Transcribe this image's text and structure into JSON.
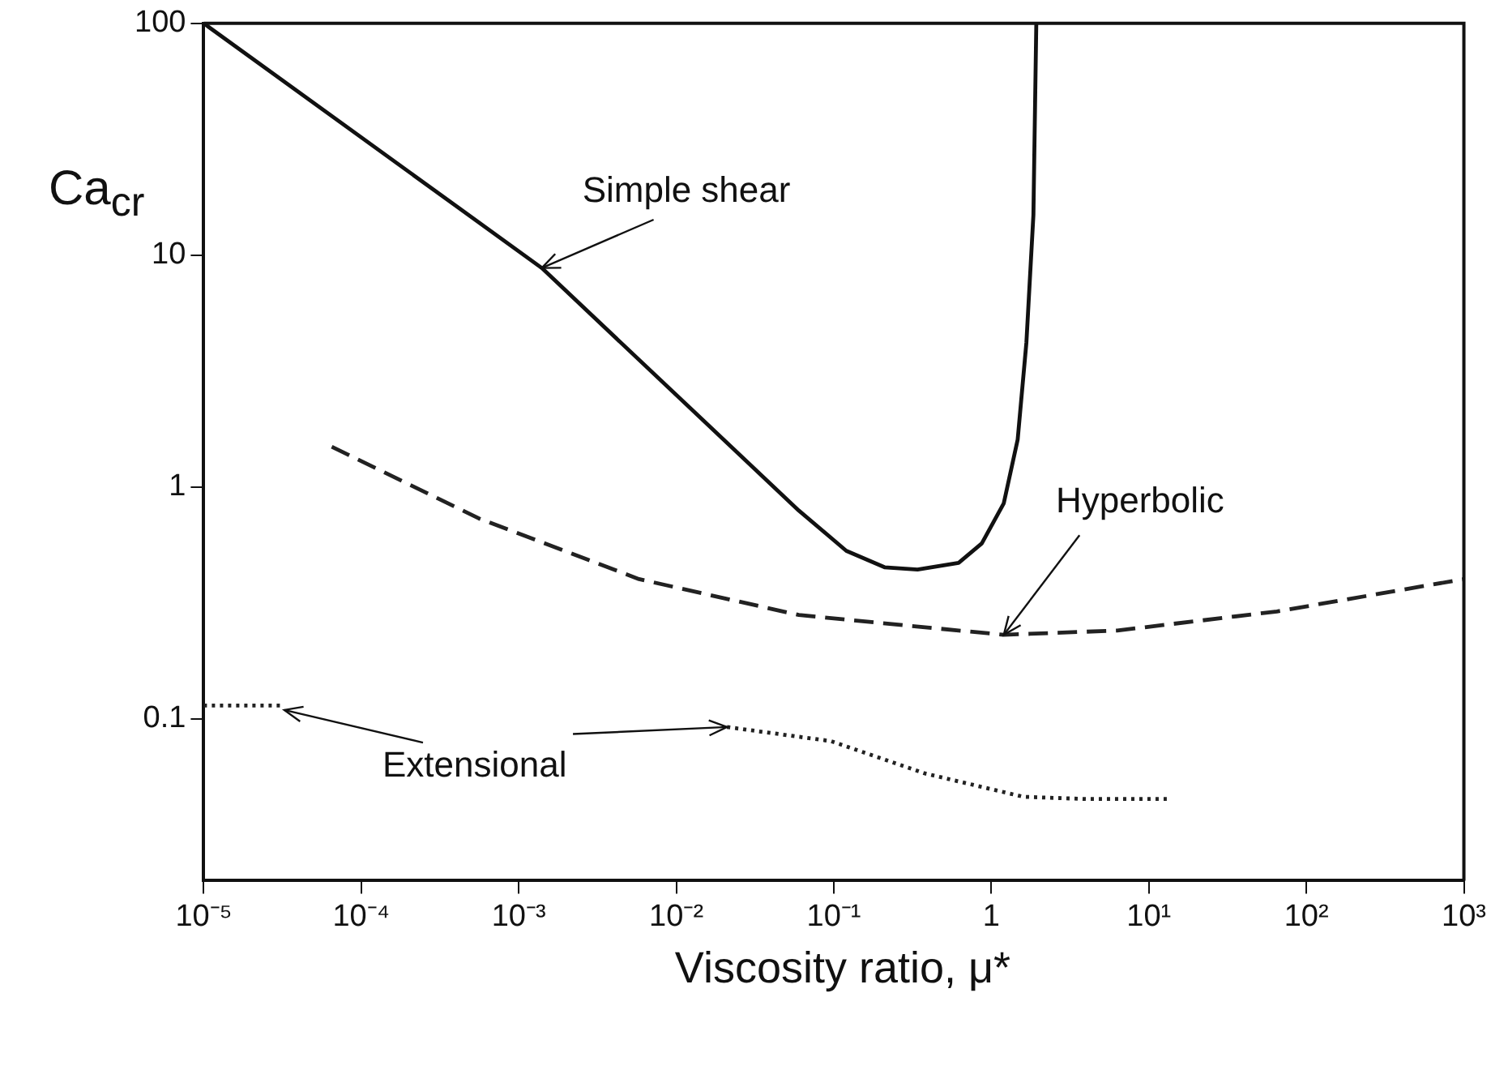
{
  "chart_data": {
    "type": "line",
    "xlabel": "Viscosity ratio, μ*",
    "ylabel": "Ca$_{cr}$",
    "log": "xy",
    "grid": false,
    "legend": false,
    "marker": "none",
    "xlim": [
      1e-05,
      1000
    ],
    "ylim": [
      0.02,
      100
    ],
    "xticks": [
      {
        "value": 1e-05,
        "label": "10⁻⁵"
      },
      {
        "value": 0.0001,
        "label": "10⁻⁴"
      },
      {
        "value": 0.001,
        "label": "10⁻³"
      },
      {
        "value": 0.01,
        "label": "10⁻²"
      },
      {
        "value": 0.1,
        "label": "10⁻¹"
      },
      1,
      {
        "value": 10,
        "label": "10¹"
      },
      {
        "value": 100,
        "label": "10²"
      },
      {
        "value": 1000,
        "label": "10³"
      }
    ],
    "yticks": [
      0.1,
      1,
      10,
      100
    ],
    "series": [
      {
        "color": "#111111",
        "line_style": "solid",
        "x": [
          1e-05,
          0.0014,
          0.06,
          0.12,
          0.21,
          0.34,
          0.62,
          0.87,
          1.2,
          1.47,
          1.67,
          1.85,
          1.93
        ],
        "values": [
          100,
          8.8,
          0.79,
          0.53,
          0.45,
          0.44,
          0.47,
          0.57,
          0.85,
          1.6,
          4.2,
          14.9,
          100
        ]
      },
      {
        "color": "#222222",
        "line_style": "dashed",
        "x": [
          6.5e-05,
          0.00056,
          0.0058,
          0.06,
          0.62,
          1.2,
          6.3,
          65,
          1000
        ],
        "values": [
          1.49,
          0.73,
          0.4,
          0.28,
          0.24,
          0.23,
          0.24,
          0.29,
          0.4
        ]
      },
      {
        "color": "#222222",
        "line_style": "dotted",
        "x": [
          1e-05,
          3.1e-05,
          0.001,
          0.021,
          0.096,
          0.38,
          1.6,
          4,
          13
        ],
        "values": [
          0.114,
          0.114,
          null,
          0.092,
          0.08,
          0.058,
          0.046,
          0.045,
          0.045
        ]
      }
    ],
    "annotations": [
      {
        "text": "Simple shear",
        "x": 0.0014,
        "y": 8.8
      },
      {
        "text": "Hyperbolic",
        "x": 1.2,
        "y": 0.23
      },
      {
        "text": "Extensional",
        "x": 0.021,
        "y": 0.092
      }
    ]
  }
}
